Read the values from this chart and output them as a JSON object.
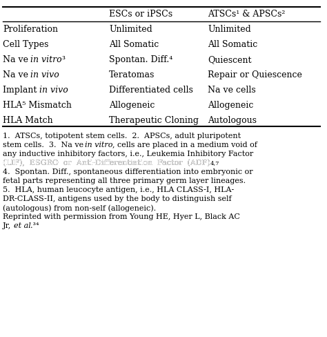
{
  "title": "",
  "header_col1": "",
  "header_col2": "ESCs or iPSCs",
  "header_col3": "ATSCs¹ & APSCs²",
  "rows": [
    [
      "Proliferation",
      "Unlimited",
      "Unlimited"
    ],
    [
      "Cell Types",
      "All Somatic",
      "All Somatic"
    ],
    [
      "Na ve {in vitro}³",
      "Spontan. Diff.⁴",
      "Quiescent"
    ],
    [
      "Na ve {in vivo}",
      "Teratomas",
      "Repair or Quiescence"
    ],
    [
      "Implant {in vivo}",
      "Differentiated cells",
      "Na ve cells"
    ],
    [
      "HLA⁵ Mismatch",
      "Allogeneic",
      "Allogeneic"
    ],
    [
      "HLA Match",
      "Therapeutic Cloning",
      "Autologous"
    ]
  ],
  "footnotes": [
    "1.  ATSCs, totipotent stem cells.  2.  APSCs, adult pluripotent",
    "stem cells.  3.  Na ve {in vitro}, cells are placed in a medium void of",
    "any inductive inhibitory factors, i.e., Leukemia Inhibitory Factor",
    "(LIF),  ESGRO  or  Anti-Differentiation  Factor  (ADF).⁴ˇ⁷",
    "4.  Spontan. Diff., spontaneous differentiation into embryonic or",
    "fetal parts representing all three primary germ layer lineages.",
    "5.  HLA, human leucocyte antigen, i.e., HLA CLASS-I, HLA-",
    "DR-CLASS-II, antigens used by the body to distinguish self",
    "(autologous) from non-self (allogeneic).",
    "Reprinted with permission from Young HE, Hyer L, Black AC",
    "Jr, {et al}.³⁴"
  ],
  "bg_color": "#ffffff",
  "text_color": "#000000",
  "font_size": 9,
  "footnote_font_size": 8
}
